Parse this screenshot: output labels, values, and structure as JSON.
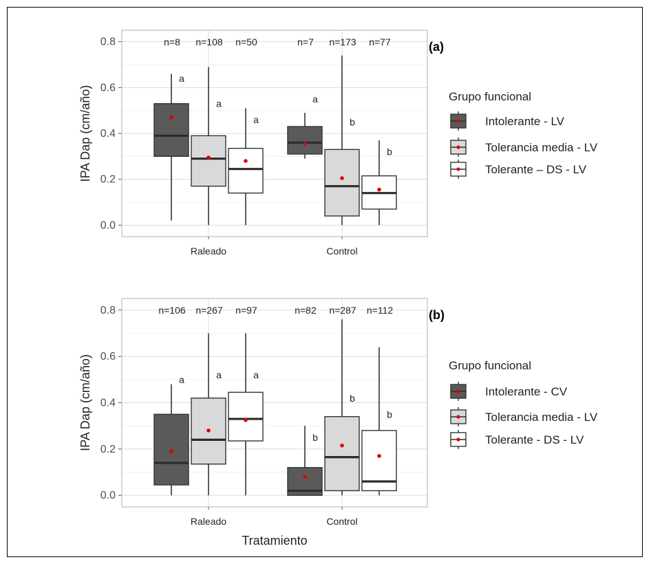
{
  "colors": {
    "intolerante": "#5a5a5a",
    "tolerancia_media": "#d9d9d9",
    "tolerante": "#ffffff",
    "mean_point": "#e00000",
    "box_line": "#333333"
  },
  "xaxis_title": "Tratamiento",
  "chart_data": [
    {
      "type": "boxplot",
      "panel_label": "(a)",
      "ylabel": "IPA Dap (cm/año)",
      "ylim": [
        -0.05,
        0.85
      ],
      "yticks": [
        "0.0",
        "0.2",
        "0.4",
        "0.6",
        "0.8"
      ],
      "categories": [
        "Raleado",
        "Control"
      ],
      "legend": {
        "title": "Grupo funcional",
        "entries": [
          "Intolerante - LV",
          "Tolerancia media - LV",
          "Tolerante – DS - LV"
        ]
      },
      "groups": [
        {
          "category": "Raleado",
          "boxes": [
            {
              "series": "Intolerante - LV",
              "min": 0.02,
              "q1": 0.3,
              "median": 0.39,
              "q3": 0.53,
              "max": 0.66,
              "mean": 0.47,
              "n": "n=8",
              "letter": "a",
              "letter_y": 0.64
            },
            {
              "series": "Tolerancia media - LV",
              "min": 0.0,
              "q1": 0.17,
              "median": 0.29,
              "q3": 0.39,
              "max": 0.69,
              "mean": 0.295,
              "n": "n=108",
              "letter": "a",
              "letter_y": 0.53
            },
            {
              "series": "Tolerante – DS - LV",
              "min": 0.0,
              "q1": 0.14,
              "median": 0.245,
              "q3": 0.335,
              "max": 0.51,
              "mean": 0.28,
              "n": "n=50",
              "letter": "a",
              "letter_y": 0.46
            }
          ]
        },
        {
          "category": "Control",
          "boxes": [
            {
              "series": "Intolerante - LV",
              "min": 0.29,
              "q1": 0.31,
              "median": 0.36,
              "q3": 0.43,
              "max": 0.49,
              "mean": 0.355,
              "n": "n=7",
              "letter": "a",
              "letter_y": 0.55
            },
            {
              "series": "Tolerancia media - LV",
              "min": 0.0,
              "q1": 0.04,
              "median": 0.17,
              "q3": 0.33,
              "max": 0.74,
              "mean": 0.205,
              "n": "n=173",
              "letter": "b",
              "letter_y": 0.45
            },
            {
              "series": "Tolerante – DS - LV",
              "min": 0.0,
              "q1": 0.07,
              "median": 0.14,
              "q3": 0.215,
              "max": 0.37,
              "mean": 0.155,
              "n": "n=77",
              "letter": "b",
              "letter_y": 0.32
            }
          ]
        }
      ]
    },
    {
      "type": "boxplot",
      "panel_label": "(b)",
      "ylabel": "IPA Dap (cm/año)",
      "ylim": [
        -0.05,
        0.85
      ],
      "yticks": [
        "0.0",
        "0.2",
        "0.4",
        "0.6",
        "0.8"
      ],
      "categories": [
        "Raleado",
        "Control"
      ],
      "legend": {
        "title": "Grupo funcional",
        "entries": [
          "Intolerante - CV",
          "Tolerancia media - LV",
          "Tolerante - DS - LV"
        ]
      },
      "groups": [
        {
          "category": "Raleado",
          "boxes": [
            {
              "series": "Intolerante - CV",
              "min": 0.0,
              "q1": 0.045,
              "median": 0.14,
              "q3": 0.35,
              "max": 0.48,
              "mean": 0.19,
              "n": "n=106",
              "letter": "a",
              "letter_y": 0.5
            },
            {
              "series": "Tolerancia media - LV",
              "min": 0.0,
              "q1": 0.135,
              "median": 0.24,
              "q3": 0.42,
              "max": 0.7,
              "mean": 0.28,
              "n": "n=267",
              "letter": "a",
              "letter_y": 0.52
            },
            {
              "series": "Tolerante - DS - LV",
              "min": 0.0,
              "q1": 0.235,
              "median": 0.33,
              "q3": 0.445,
              "max": 0.7,
              "mean": 0.325,
              "n": "n=97",
              "letter": "a",
              "letter_y": 0.52
            }
          ]
        },
        {
          "category": "Control",
          "boxes": [
            {
              "series": "Intolerante - CV",
              "min": 0.0,
              "q1": 0.0,
              "median": 0.02,
              "q3": 0.12,
              "max": 0.3,
              "mean": 0.08,
              "n": "n=82",
              "letter": "b",
              "letter_y": 0.25
            },
            {
              "series": "Tolerancia media - LV",
              "min": 0.0,
              "q1": 0.02,
              "median": 0.165,
              "q3": 0.34,
              "max": 0.76,
              "mean": 0.215,
              "n": "n=287",
              "letter": "b",
              "letter_y": 0.42
            },
            {
              "series": "Tolerante - DS - LV",
              "min": 0.0,
              "q1": 0.02,
              "median": 0.06,
              "q3": 0.28,
              "max": 0.64,
              "mean": 0.17,
              "n": "n=112",
              "letter": "b",
              "letter_y": 0.35
            }
          ]
        }
      ]
    }
  ]
}
